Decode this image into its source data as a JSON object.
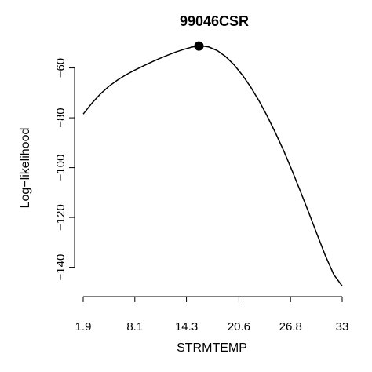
{
  "chart_data": {
    "type": "line",
    "title": "99046CSR",
    "xlabel": "STRMTEMP",
    "ylabel": "Log−likelihood",
    "xlim": [
      1.9,
      33
    ],
    "ylim": [
      -148,
      -51
    ],
    "x_ticks": [
      1.9,
      8.1,
      14.3,
      20.6,
      26.8,
      33
    ],
    "x_tick_labels": [
      "1.9",
      "8.1",
      "14.3",
      "20.6",
      "26.8",
      "33"
    ],
    "y_ticks": [
      -60,
      -80,
      -100,
      -120,
      -140
    ],
    "y_tick_labels": [
      "−60",
      "−80",
      "−100",
      "−120",
      "−140"
    ],
    "grid": false,
    "series": [
      {
        "x": [
          1.9,
          3,
          4,
          5,
          6,
          7,
          8,
          9,
          10,
          11,
          12,
          13,
          14,
          15,
          15.8,
          16.5,
          17,
          18,
          19,
          20,
          21,
          22,
          23,
          24,
          25,
          26,
          27,
          28,
          29,
          30,
          31,
          32,
          33
        ],
        "y": [
          -78.5,
          -73.9,
          -70.3,
          -67.3,
          -64.9,
          -62.8,
          -61.0,
          -59.4,
          -57.8,
          -56.3,
          -54.9,
          -53.6,
          -52.5,
          -51.6,
          -51.2,
          -51.3,
          -51.6,
          -53.0,
          -55.4,
          -58.7,
          -62.8,
          -67.6,
          -73.1,
          -79.3,
          -86.1,
          -93.4,
          -101.3,
          -109.6,
          -118.2,
          -126.9,
          -135.5,
          -143.0,
          -147.5
        ]
      }
    ],
    "max_point": {
      "x": 15.8,
      "y": -51.2
    }
  }
}
